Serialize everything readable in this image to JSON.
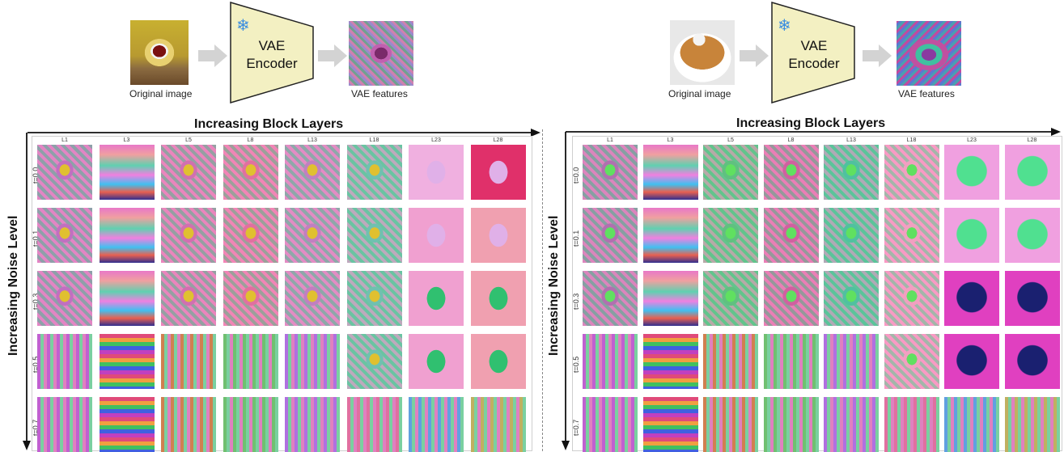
{
  "panels": [
    {
      "id": "teapot",
      "pipeline": {
        "original_caption": "Original image",
        "encoder_label_line1": "VAE",
        "encoder_label_line2": "Encoder",
        "features_caption": "VAE features",
        "frozen_icon": "snowflake-icon"
      },
      "x_axis_title": "Increasing Block Layers",
      "y_axis_title": "Increasing Noise Level",
      "columns": [
        "L1",
        "L3",
        "L5",
        "L8",
        "L13",
        "L18",
        "L23",
        "L28"
      ],
      "rows": [
        "t=0.0",
        "t=0.1",
        "t=0.3",
        "t=0.5",
        "t=0.7"
      ]
    },
    {
      "id": "baseball",
      "pipeline": {
        "original_caption": "Original image",
        "encoder_label_line1": "VAE",
        "encoder_label_line2": "Encoder",
        "features_caption": "VAE features",
        "frozen_icon": "snowflake-icon"
      },
      "x_axis_title": "Increasing Block Layers",
      "y_axis_title": "Increasing Noise Level",
      "columns": [
        "L1",
        "L3",
        "L5",
        "L8",
        "L13",
        "L18",
        "L23",
        "L28"
      ],
      "rows": [
        "t=0.0",
        "t=0.1",
        "t=0.3",
        "t=0.5",
        "t=0.7"
      ]
    }
  ],
  "colors": {
    "encoder_fill": "#f3f0c2",
    "arrow_fill": "#d3d3d3",
    "axis": "#111111"
  }
}
